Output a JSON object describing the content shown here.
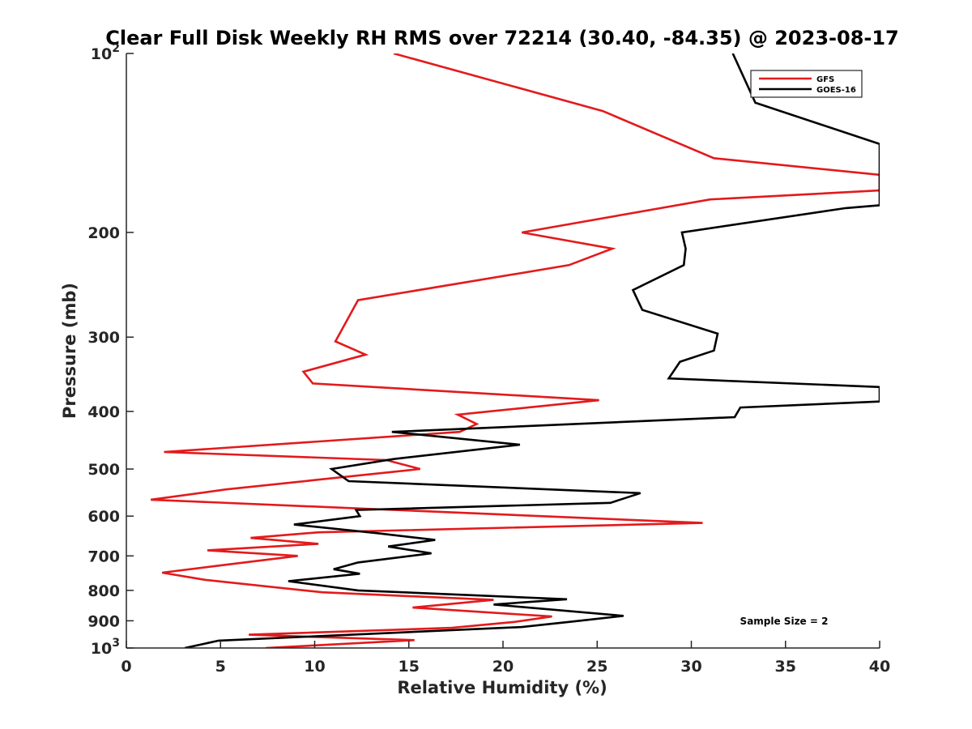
{
  "chart_data": {
    "type": "line",
    "title": "Clear Full Disk Weekly RH RMS over 72214 (30.40, -84.35) @ 2023-08-17",
    "xlabel": "Relative Humidity (%)",
    "ylabel": "Pressure (mb)",
    "xlim": [
      0,
      40
    ],
    "ylim": [
      100,
      1000
    ],
    "yscale": "log",
    "yreverse": true,
    "grid": false,
    "legend_location": "top-right",
    "x_ticks": [
      "0",
      "5",
      "10",
      "15",
      "20",
      "25",
      "30",
      "35",
      "40"
    ],
    "y_ticks": [
      {
        "value": 100,
        "label": "10",
        "sup": "2"
      },
      {
        "value": 200,
        "label": "200",
        "sup": ""
      },
      {
        "value": 300,
        "label": "300",
        "sup": ""
      },
      {
        "value": 400,
        "label": "400",
        "sup": ""
      },
      {
        "value": 500,
        "label": "500",
        "sup": ""
      },
      {
        "value": 600,
        "label": "600",
        "sup": ""
      },
      {
        "value": 700,
        "label": "700",
        "sup": ""
      },
      {
        "value": 800,
        "label": "800",
        "sup": ""
      },
      {
        "value": 900,
        "label": "900",
        "sup": ""
      },
      {
        "value": 1000,
        "label": "10",
        "sup": "3"
      }
    ],
    "annotation": "Sample Size = 2",
    "series": [
      {
        "name": "GFS",
        "color": "#e31a1c",
        "points": [
          [
            14.2,
            100
          ],
          [
            25.3,
            125
          ],
          [
            31.2,
            150
          ],
          [
            40.0,
            160
          ],
          [
            40.0,
            170
          ],
          [
            40.0,
            170
          ],
          [
            31.0,
            176
          ],
          [
            21.0,
            200
          ],
          [
            25.8,
            213
          ],
          [
            23.5,
            227
          ],
          [
            12.3,
            260
          ],
          [
            11.1,
            305
          ],
          [
            12.7,
            321
          ],
          [
            9.4,
            343
          ],
          [
            9.9,
            359
          ],
          [
            25.1,
            383
          ],
          [
            17.6,
            405
          ],
          [
            18.6,
            420
          ],
          [
            17.7,
            433
          ],
          [
            2.0,
            468
          ],
          [
            13.8,
            483
          ],
          [
            15.6,
            500
          ],
          [
            5.3,
            541
          ],
          [
            1.3,
            563
          ],
          [
            30.6,
            616
          ],
          [
            10.2,
            639
          ],
          [
            6.6,
            653
          ],
          [
            10.2,
            668
          ],
          [
            4.3,
            685
          ],
          [
            9.1,
            700
          ],
          [
            4.6,
            729
          ],
          [
            1.9,
            747
          ],
          [
            4.2,
            768
          ],
          [
            10.4,
            806
          ],
          [
            19.5,
            830
          ],
          [
            15.2,
            855
          ],
          [
            22.6,
            885
          ],
          [
            20.6,
            904
          ],
          [
            17.3,
            925
          ],
          [
            6.5,
            950
          ],
          [
            15.3,
            970
          ],
          [
            7.4,
            1000
          ]
        ]
      },
      {
        "name": "GOES-16",
        "color": "#000000",
        "points": [
          [
            32.2,
            100
          ],
          [
            33.4,
            121
          ],
          [
            40.0,
            142
          ],
          [
            40.0,
            170
          ],
          [
            40.0,
            180
          ],
          [
            38.2,
            182
          ],
          [
            29.5,
            200
          ],
          [
            29.7,
            213
          ],
          [
            29.6,
            227
          ],
          [
            26.9,
            250
          ],
          [
            27.4,
            270
          ],
          [
            31.4,
            296
          ],
          [
            31.2,
            316
          ],
          [
            29.4,
            330
          ],
          [
            28.8,
            352
          ],
          [
            40.0,
            364
          ],
          [
            40.0,
            385
          ],
          [
            32.6,
            394
          ],
          [
            32.3,
            409
          ],
          [
            14.1,
            433
          ],
          [
            20.9,
            455
          ],
          [
            14.2,
            481
          ],
          [
            10.9,
            500
          ],
          [
            11.8,
            524
          ],
          [
            27.3,
            549
          ],
          [
            25.7,
            570
          ],
          [
            12.2,
            586
          ],
          [
            12.4,
            600
          ],
          [
            8.9,
            620
          ],
          [
            13.3,
            641
          ],
          [
            16.4,
            658
          ],
          [
            13.9,
            675
          ],
          [
            16.2,
            693
          ],
          [
            12.3,
            718
          ],
          [
            11.0,
            737
          ],
          [
            12.4,
            750
          ],
          [
            8.6,
            772
          ],
          [
            12.3,
            800
          ],
          [
            23.4,
            828
          ],
          [
            19.5,
            845
          ],
          [
            26.4,
            883
          ],
          [
            23.8,
            902
          ],
          [
            21.0,
            922
          ],
          [
            4.9,
            972
          ],
          [
            3.1,
            1000
          ]
        ]
      }
    ]
  }
}
